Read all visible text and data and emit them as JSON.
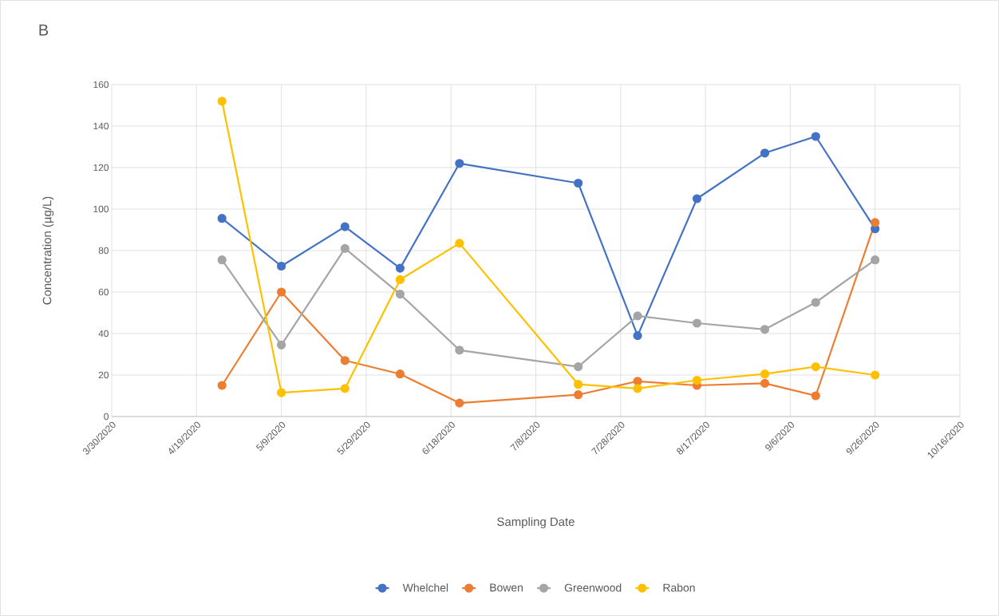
{
  "chart_data": {
    "type": "line",
    "title": "B",
    "xlabel": "Sampling Date",
    "ylabel": "Concentration (µg/L)",
    "x": [
      "2020-04-25",
      "2020-05-09",
      "2020-05-24",
      "2020-06-06",
      "2020-06-20",
      "2020-07-18",
      "2020-08-01",
      "2020-08-15",
      "2020-08-31",
      "2020-09-12",
      "2020-09-26"
    ],
    "series": [
      {
        "name": "Whelchel",
        "color": "#4472c4",
        "values": [
          95.5,
          72.5,
          91.5,
          71.5,
          122,
          112.5,
          39,
          105,
          127,
          135,
          90.5
        ]
      },
      {
        "name": "Bowen",
        "color": "#ed7d31",
        "values": [
          15,
          60,
          27,
          20.5,
          6.5,
          10.5,
          17,
          15,
          16,
          10,
          93.5
        ]
      },
      {
        "name": "Greenwood",
        "color": "#a5a5a5",
        "values": [
          75.5,
          34.5,
          81,
          59,
          32,
          24,
          48.5,
          45,
          42,
          55,
          75.5
        ]
      },
      {
        "name": "Rabon",
        "color": "#ffc000",
        "values": [
          152,
          11.5,
          13.5,
          66,
          83.5,
          15.5,
          13.5,
          17.5,
          20.5,
          24,
          20
        ]
      }
    ],
    "xlim": [
      "2020-03-30",
      "2020-10-16"
    ],
    "xticks": [
      {
        "value": "2020-03-30",
        "label": "3/30/2020"
      },
      {
        "value": "2020-04-19",
        "label": "4/19/2020"
      },
      {
        "value": "2020-05-09",
        "label": "5/9/2020"
      },
      {
        "value": "2020-05-29",
        "label": "5/29/2020"
      },
      {
        "value": "2020-06-18",
        "label": "6/18/2020"
      },
      {
        "value": "2020-07-08",
        "label": "7/8/2020"
      },
      {
        "value": "2020-07-28",
        "label": "7/28/2020"
      },
      {
        "value": "2020-08-17",
        "label": "8/17/2020"
      },
      {
        "value": "2020-09-06",
        "label": "9/6/2020"
      },
      {
        "value": "2020-09-26",
        "label": "9/26/2020"
      },
      {
        "value": "2020-10-16",
        "label": "10/16/2020"
      }
    ],
    "ylim": [
      0,
      160
    ],
    "yticks": [
      0,
      20,
      40,
      60,
      80,
      100,
      120,
      140,
      160
    ],
    "grid": true,
    "legend": "bottom",
    "marker": "circle",
    "line_style": "solid"
  }
}
